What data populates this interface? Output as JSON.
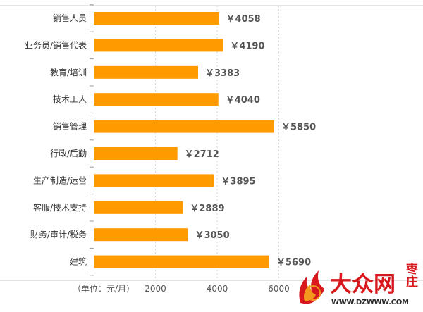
{
  "chart_data": {
    "type": "bar",
    "orientation": "horizontal",
    "categories": [
      "销售人员",
      "业务员/销售代表",
      "教育/培训",
      "技术工人",
      "销售管理",
      "行政/后勤",
      "生产制造/运营",
      "客服/技术支持",
      "财务/审计/税务",
      "建筑"
    ],
    "values": [
      4058,
      4190,
      3383,
      4040,
      5850,
      2712,
      3895,
      2889,
      3050,
      5690
    ],
    "value_labels": [
      "￥4058",
      "￥4190",
      "￥3383",
      "￥4040",
      "￥5850",
      "￥2712",
      "￥3895",
      "￥2889",
      "￥3050",
      "￥5690"
    ],
    "x_ticks": [
      "2000",
      "4000",
      "6000"
    ],
    "x_tick_values": [
      2000,
      4000,
      6000
    ],
    "xlabel": "（单位：元/月）",
    "xlim": [
      0,
      8000
    ],
    "grid": true,
    "bar_color": "#FF9A00"
  },
  "watermark": {
    "brand": "大众网",
    "city": "枣庄",
    "url": "WWW.DZWWW.COM",
    "color": "#d7191d"
  }
}
